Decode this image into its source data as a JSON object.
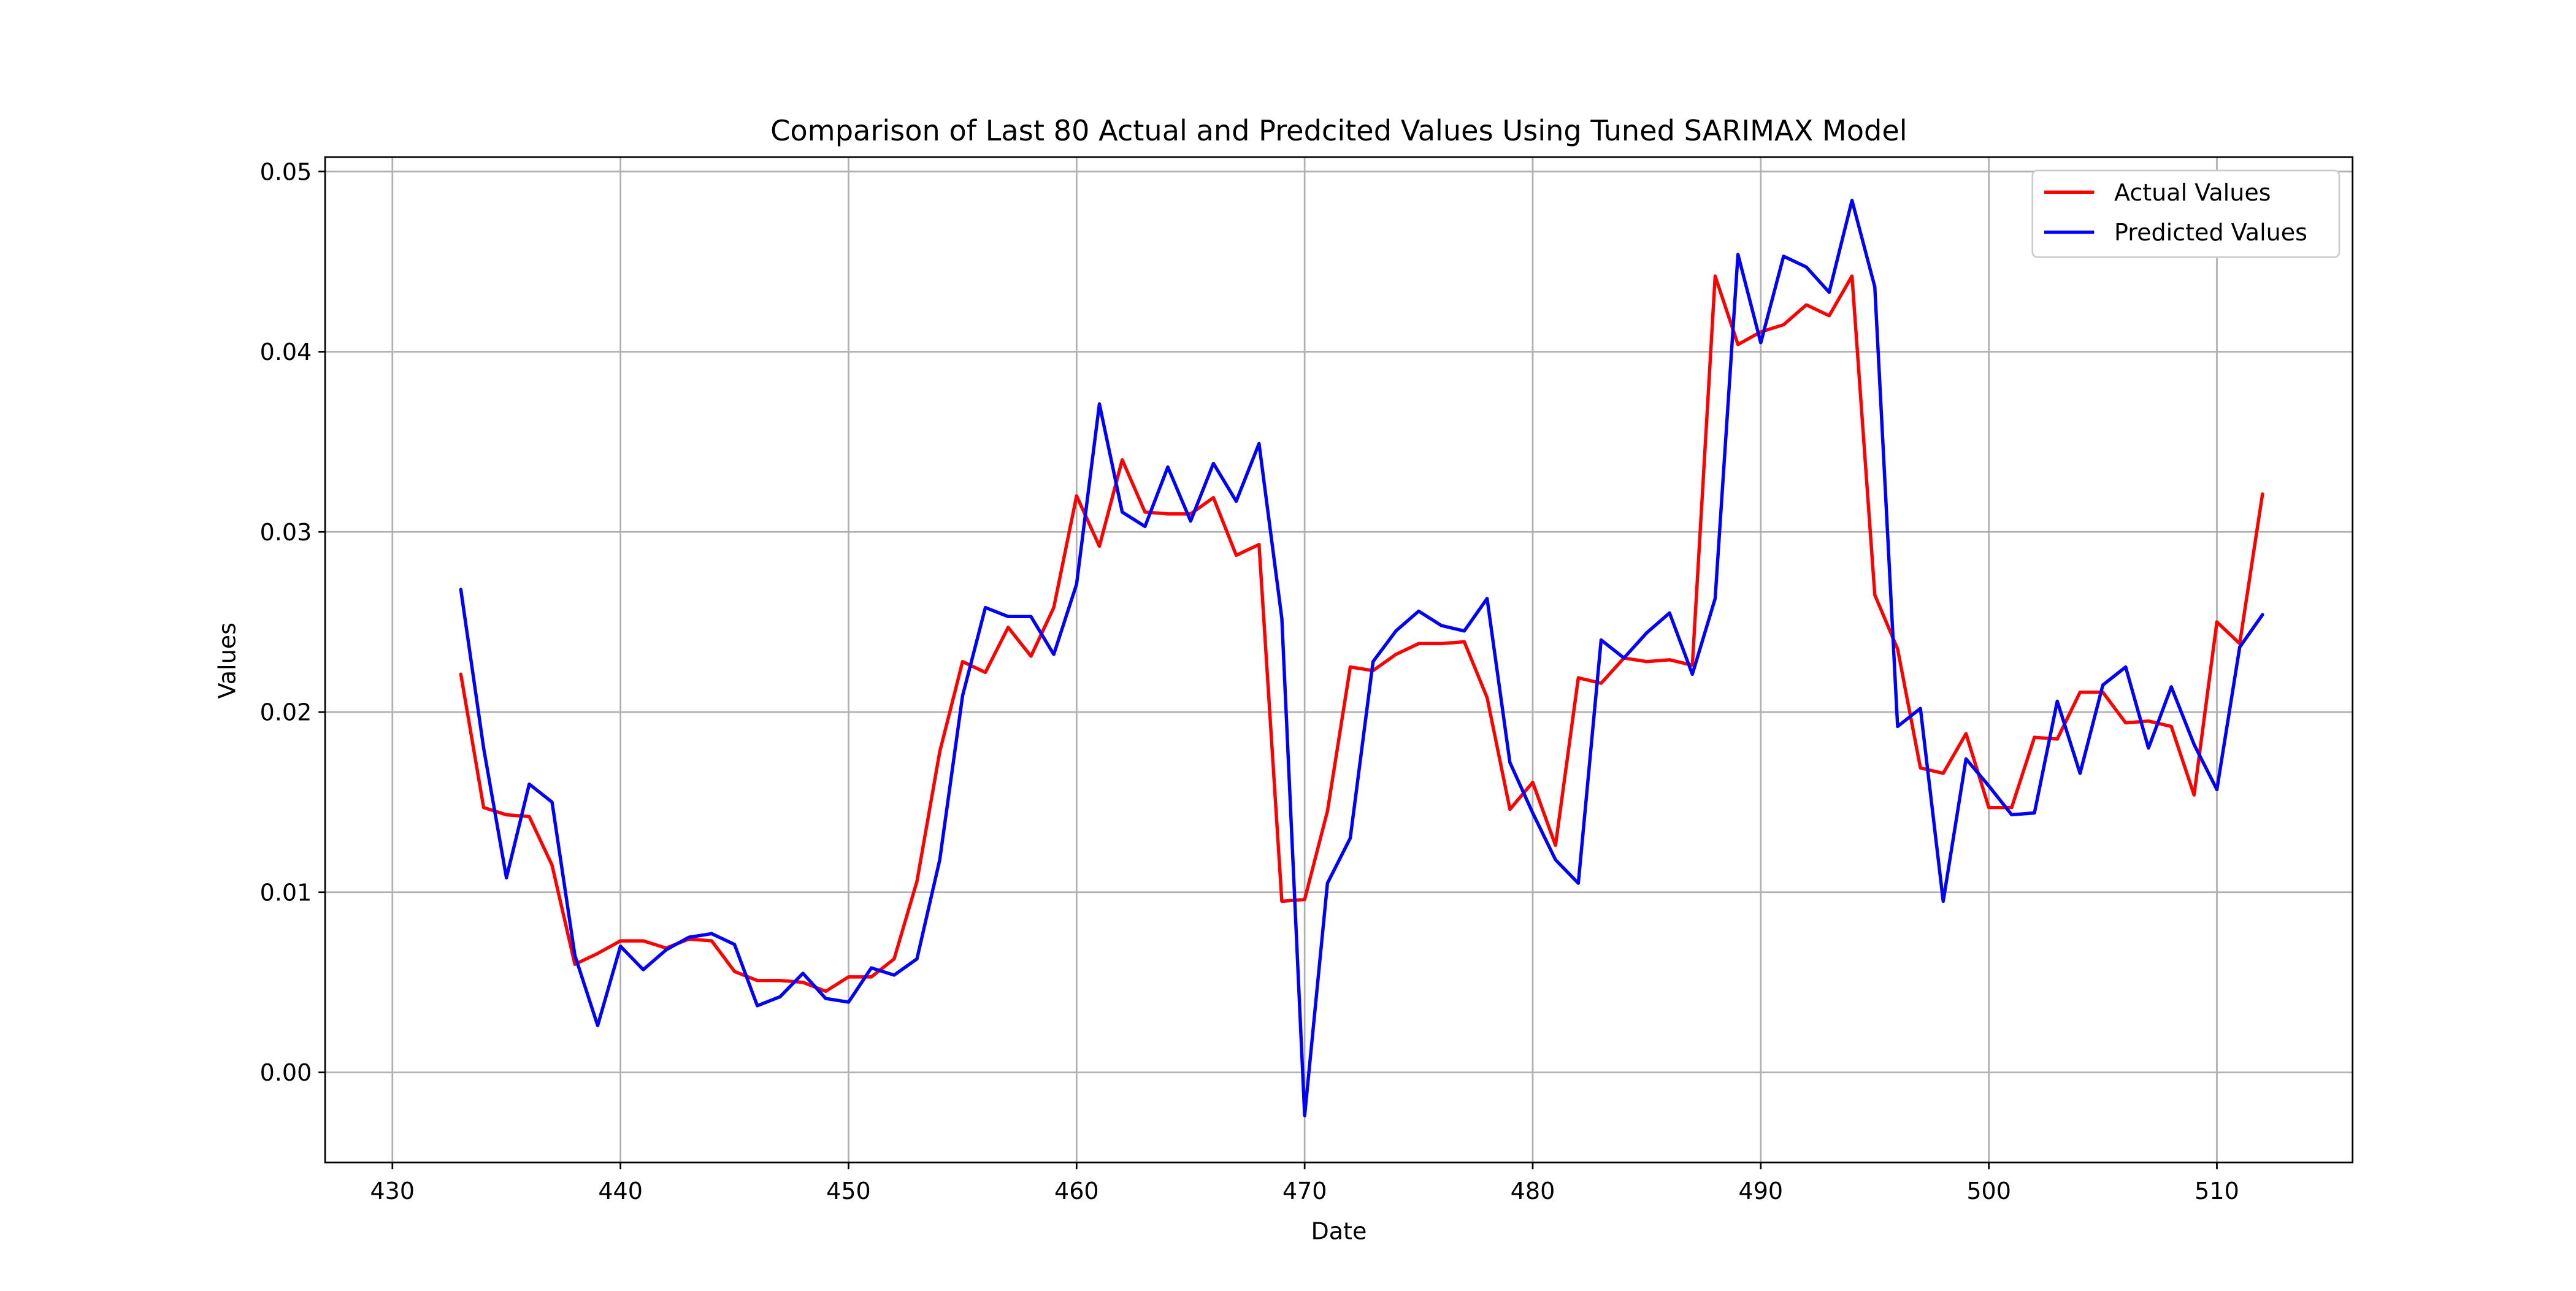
{
  "chart_data": {
    "type": "line",
    "title": "Comparison of Last 80 Actual and Predcited Values Using Tuned SARIMAX Model",
    "xlabel": "Date",
    "ylabel": "Values",
    "xlim": [
      427.05,
      515.95
    ],
    "ylim": [
      -0.005,
      0.0508
    ],
    "xticks": [
      430,
      440,
      450,
      460,
      470,
      480,
      490,
      500,
      510
    ],
    "xtick_labels": [
      "430",
      "440",
      "450",
      "460",
      "470",
      "480",
      "490",
      "500",
      "510"
    ],
    "yticks": [
      0.0,
      0.01,
      0.02,
      0.03,
      0.04,
      0.05
    ],
    "ytick_labels": [
      "0.00",
      "0.01",
      "0.02",
      "0.03",
      "0.04",
      "0.05"
    ],
    "grid": true,
    "legend_position": "upper-right",
    "x": [
      433,
      434,
      435,
      436,
      437,
      438,
      439,
      440,
      441,
      442,
      443,
      444,
      445,
      446,
      447,
      448,
      449,
      450,
      451,
      452,
      453,
      454,
      455,
      456,
      457,
      458,
      459,
      460,
      461,
      462,
      463,
      464,
      465,
      466,
      467,
      468,
      469,
      470,
      471,
      472,
      473,
      474,
      475,
      476,
      477,
      478,
      479,
      480,
      481,
      482,
      483,
      484,
      485,
      486,
      487,
      488,
      489,
      490,
      491,
      492,
      493,
      494,
      495,
      496,
      497,
      498,
      499,
      500,
      501,
      502,
      503,
      504,
      505,
      506,
      507,
      508,
      509,
      510,
      511,
      512
    ],
    "series": [
      {
        "name": "Actual Values",
        "color": "#ff0000",
        "values": [
          0.0221,
          0.0147,
          0.0143,
          0.0142,
          0.0115,
          0.006,
          0.0066,
          0.0073,
          0.0073,
          0.0069,
          0.0074,
          0.0073,
          0.0056,
          0.0051,
          0.0051,
          0.005,
          0.0045,
          0.0053,
          0.0053,
          0.0063,
          0.0106,
          0.0178,
          0.0228,
          0.0222,
          0.0247,
          0.0231,
          0.0258,
          0.032,
          0.0292,
          0.034,
          0.0311,
          0.031,
          0.031,
          0.0319,
          0.0287,
          0.0293,
          0.0095,
          0.0096,
          0.0145,
          0.0225,
          0.0223,
          0.0232,
          0.0238,
          0.0238,
          0.0239,
          0.0208,
          0.0146,
          0.0161,
          0.0126,
          0.0219,
          0.0216,
          0.023,
          0.0228,
          0.0229,
          0.0226,
          0.0442,
          0.0404,
          0.0411,
          0.0415,
          0.0426,
          0.042,
          0.0442,
          0.0265,
          0.0235,
          0.0169,
          0.0166,
          0.0188,
          0.0147,
          0.0147,
          0.0186,
          0.0185,
          0.0211,
          0.0211,
          0.0194,
          0.0195,
          0.0192,
          0.0154,
          0.025,
          0.0238,
          0.0321
        ]
      },
      {
        "name": "Predicted Values",
        "color": "#0000ff",
        "values": [
          0.0268,
          0.018,
          0.0108,
          0.016,
          0.015,
          0.0065,
          0.0026,
          0.007,
          0.0057,
          0.0068,
          0.0075,
          0.0077,
          0.0071,
          0.0037,
          0.0042,
          0.0055,
          0.0041,
          0.0039,
          0.0058,
          0.0054,
          0.0063,
          0.0118,
          0.0209,
          0.0258,
          0.0253,
          0.0253,
          0.0232,
          0.0271,
          0.0371,
          0.0311,
          0.0303,
          0.0336,
          0.0306,
          0.0338,
          0.0317,
          0.0349,
          0.0252,
          -0.0024,
          0.0105,
          0.013,
          0.0228,
          0.0245,
          0.0256,
          0.0248,
          0.0245,
          0.0263,
          0.0172,
          0.0144,
          0.0118,
          0.0105,
          0.024,
          0.023,
          0.0244,
          0.0255,
          0.0221,
          0.0263,
          0.0454,
          0.0405,
          0.0453,
          0.0447,
          0.0433,
          0.0484,
          0.0436,
          0.0192,
          0.0202,
          0.0095,
          0.0174,
          0.0159,
          0.0143,
          0.0144,
          0.0206,
          0.0166,
          0.0215,
          0.0225,
          0.018,
          0.0214,
          0.0182,
          0.0157,
          0.0236,
          0.0254
        ]
      }
    ]
  }
}
